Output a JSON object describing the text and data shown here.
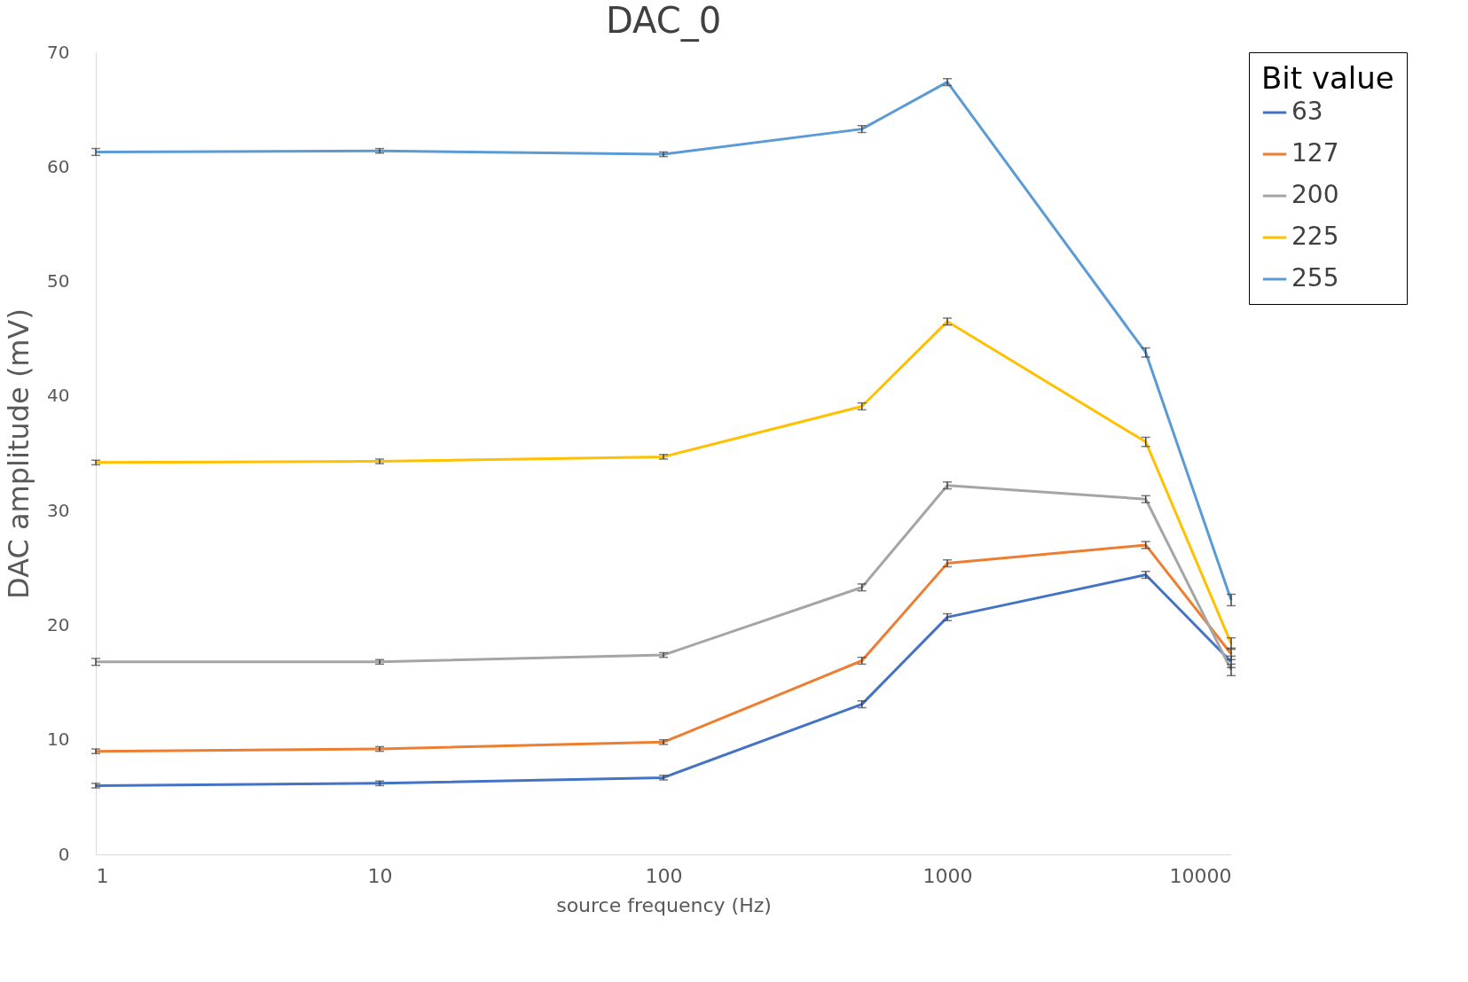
{
  "chart_data": {
    "type": "line",
    "title": "DAC_0",
    "xlabel": "source frequency (Hz)",
    "ylabel": "DAC amplitude (mV)",
    "legend_title": "Bit value",
    "x": [
      1,
      10,
      100,
      500,
      1000,
      5000,
      10000
    ],
    "series": [
      {
        "name": "63",
        "color": "#4472c4",
        "values": [
          6.0,
          6.2,
          6.7,
          13.1,
          20.7,
          24.4,
          16.8
        ],
        "errors": [
          0.2,
          0.2,
          0.2,
          0.3,
          0.3,
          0.3,
          0.5
        ]
      },
      {
        "name": "127",
        "color": "#ed7d31",
        "values": [
          9.0,
          9.2,
          9.8,
          16.9,
          25.4,
          27.0,
          17.5
        ],
        "errors": [
          0.2,
          0.2,
          0.2,
          0.3,
          0.3,
          0.3,
          0.5
        ]
      },
      {
        "name": "200",
        "color": "#a5a5a5",
        "values": [
          16.8,
          16.8,
          17.4,
          23.3,
          32.2,
          31.0,
          16.1
        ],
        "errors": [
          0.3,
          0.2,
          0.2,
          0.3,
          0.3,
          0.3,
          0.5
        ]
      },
      {
        "name": "225",
        "color": "#ffc000",
        "values": [
          34.2,
          34.3,
          34.7,
          39.1,
          46.5,
          36.0,
          18.4
        ],
        "errors": [
          0.2,
          0.2,
          0.2,
          0.3,
          0.3,
          0.4,
          0.5
        ]
      },
      {
        "name": "255",
        "color": "#5b9bd5",
        "values": [
          61.3,
          61.4,
          61.1,
          63.3,
          67.4,
          43.8,
          22.2
        ],
        "errors": [
          0.3,
          0.2,
          0.2,
          0.3,
          0.3,
          0.4,
          0.5
        ]
      }
    ],
    "xlim": [
      1,
      10000
    ],
    "xticks": [
      1,
      10,
      100,
      1000,
      10000
    ],
    "ylim": [
      0,
      70
    ],
    "yticks": [
      0,
      10,
      20,
      30,
      40,
      50,
      60,
      70
    ],
    "log": "x",
    "grid": false,
    "legend": "right",
    "marker": "none",
    "line_style": "solid"
  }
}
